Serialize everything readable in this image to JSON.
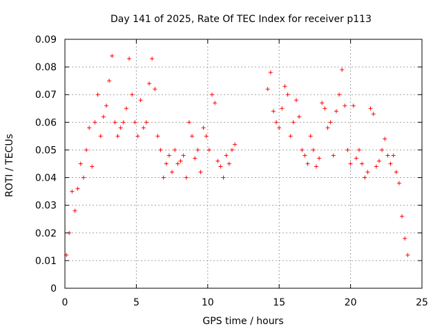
{
  "chart_data": {
    "type": "scatter",
    "title": "Day 141 of 2025, Rate Of TEC Index for receiver p113",
    "xlabel": "GPS time / hours",
    "ylabel": "ROTI / TECUs",
    "xlim": [
      0,
      25
    ],
    "ylim": [
      0,
      0.09
    ],
    "x_ticks": [
      "0",
      "5",
      "10",
      "15",
      "20",
      "25"
    ],
    "y_ticks": [
      "0",
      "0.01",
      "0.02",
      "0.03",
      "0.04",
      "0.05",
      "0.06",
      "0.07",
      "0.08",
      "0.09"
    ],
    "grid": true,
    "marker": "+",
    "series": [
      {
        "color": "#ff0000",
        "x": [
          0.1,
          0.3,
          0.5,
          0.7,
          0.9,
          1.1,
          1.3,
          1.5,
          1.7,
          1.9,
          2.1,
          2.3,
          2.5,
          2.7,
          2.9,
          3.1,
          3.3,
          3.5,
          3.7,
          3.9,
          4.1,
          4.3,
          4.5,
          4.7,
          4.9,
          5.1,
          5.3,
          5.5,
          5.7,
          5.9,
          6.1,
          6.3,
          6.5,
          6.7,
          6.9,
          7.1,
          7.3,
          7.5,
          7.7,
          7.9,
          8.1,
          8.3,
          8.5,
          8.7,
          8.9,
          9.1,
          9.3,
          9.5,
          9.7,
          9.9,
          10.1,
          10.3,
          10.5,
          10.7,
          10.9,
          11.1,
          11.3,
          11.5,
          11.7,
          11.9,
          14.2,
          14.4,
          14.6,
          14.8,
          15.0,
          15.2,
          15.4,
          15.6,
          15.8,
          16.0,
          16.2,
          16.4,
          16.6,
          16.8,
          17.0,
          17.2,
          17.4,
          17.6,
          17.8,
          18.0,
          18.2,
          18.4,
          18.6,
          18.8,
          19.0,
          19.2,
          19.4,
          19.6,
          19.8,
          20.0,
          20.2,
          20.4,
          20.6,
          20.8,
          21.0,
          21.2,
          21.4,
          21.6,
          21.8,
          22.0,
          22.2,
          22.4,
          22.6,
          22.8,
          23.0,
          23.2,
          23.4,
          23.6,
          23.8,
          24.0
        ],
        "y": [
          0.012,
          0.02,
          0.035,
          0.028,
          0.036,
          0.045,
          0.04,
          0.05,
          0.058,
          0.044,
          0.06,
          0.07,
          0.055,
          0.062,
          0.066,
          0.075,
          0.084,
          0.06,
          0.055,
          0.058,
          0.06,
          0.065,
          0.083,
          0.07,
          0.06,
          0.055,
          0.068,
          0.058,
          0.06,
          0.074,
          0.083,
          0.072,
          0.055,
          0.05,
          0.04,
          0.045,
          0.048,
          0.042,
          0.05,
          0.045,
          0.046,
          0.048,
          0.04,
          0.06,
          0.055,
          0.047,
          0.05,
          0.042,
          0.058,
          0.055,
          0.05,
          0.07,
          0.067,
          0.046,
          0.044,
          0.04,
          0.048,
          0.045,
          0.05,
          0.052,
          0.072,
          0.078,
          0.064,
          0.06,
          0.058,
          0.065,
          0.073,
          0.07,
          0.055,
          0.06,
          0.068,
          0.062,
          0.05,
          0.048,
          0.045,
          0.055,
          0.05,
          0.044,
          0.047,
          0.067,
          0.065,
          0.058,
          0.06,
          0.048,
          0.064,
          0.07,
          0.079,
          0.066,
          0.05,
          0.045,
          0.066,
          0.047,
          0.05,
          0.045,
          0.04,
          0.042,
          0.065,
          0.063,
          0.044,
          0.046,
          0.05,
          0.054,
          0.048,
          0.045,
          0.048,
          0.042,
          0.038,
          0.026,
          0.018,
          0.012
        ]
      }
    ]
  }
}
